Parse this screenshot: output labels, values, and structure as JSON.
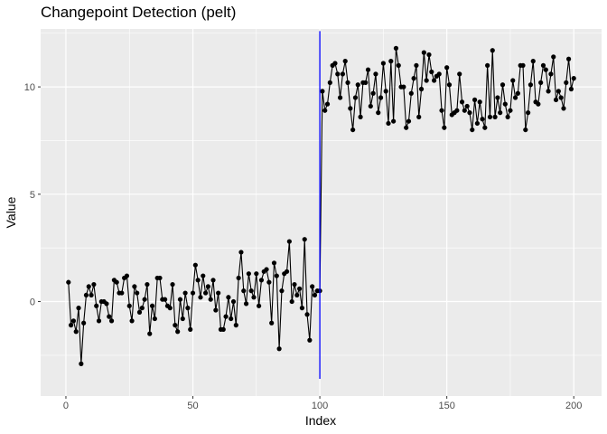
{
  "chart_data": {
    "type": "line",
    "title": "Changepoint Detection (pelt)",
    "xlabel": "Index",
    "ylabel": "Value",
    "xlim": [
      -9.95,
      210.95
    ],
    "ylim": [
      -4.4,
      12.7
    ],
    "xticks": [
      0,
      50,
      100,
      150,
      200
    ],
    "yticks": [
      0,
      5,
      10
    ],
    "grid": true,
    "background": "#ebebeb",
    "grid_color": "#ffffff",
    "line_color": "#000000",
    "point_color": "#000000",
    "changepoint_color": "#0000ff",
    "changepoints": [
      100
    ],
    "x": [
      1,
      2,
      3,
      4,
      5,
      6,
      7,
      8,
      9,
      10,
      11,
      12,
      13,
      14,
      15,
      16,
      17,
      18,
      19,
      20,
      21,
      22,
      23,
      24,
      25,
      26,
      27,
      28,
      29,
      30,
      31,
      32,
      33,
      34,
      35,
      36,
      37,
      38,
      39,
      40,
      41,
      42,
      43,
      44,
      45,
      46,
      47,
      48,
      49,
      50,
      51,
      52,
      53,
      54,
      55,
      56,
      57,
      58,
      59,
      60,
      61,
      62,
      63,
      64,
      65,
      66,
      67,
      68,
      69,
      70,
      71,
      72,
      73,
      74,
      75,
      76,
      77,
      78,
      79,
      80,
      81,
      82,
      83,
      84,
      85,
      86,
      87,
      88,
      89,
      90,
      91,
      92,
      93,
      94,
      95,
      96,
      97,
      98,
      99,
      100,
      101,
      102,
      103,
      104,
      105,
      106,
      107,
      108,
      109,
      110,
      111,
      112,
      113,
      114,
      115,
      116,
      117,
      118,
      119,
      120,
      121,
      122,
      123,
      124,
      125,
      126,
      127,
      128,
      129,
      130,
      131,
      132,
      133,
      134,
      135,
      136,
      137,
      138,
      139,
      140,
      141,
      142,
      143,
      144,
      145,
      146,
      147,
      148,
      149,
      150,
      151,
      152,
      153,
      154,
      155,
      156,
      157,
      158,
      159,
      160,
      161,
      162,
      163,
      164,
      165,
      166,
      167,
      168,
      169,
      170,
      171,
      172,
      173,
      174,
      175,
      176,
      177,
      178,
      179,
      180,
      181,
      182,
      183,
      184,
      185,
      186,
      187,
      188,
      189,
      190,
      191,
      192,
      193,
      194,
      195,
      196,
      197,
      198,
      199,
      200
    ],
    "values": [
      0.9,
      -1.1,
      -0.9,
      -1.4,
      -0.3,
      -2.9,
      -1.0,
      0.3,
      0.7,
      0.3,
      0.8,
      -0.2,
      -0.9,
      0.0,
      0.0,
      -0.1,
      -0.7,
      -0.9,
      1.0,
      0.9,
      0.4,
      0.4,
      1.1,
      1.2,
      -0.2,
      -0.9,
      0.7,
      0.4,
      -0.5,
      -0.3,
      0.1,
      0.8,
      -1.5,
      -0.2,
      -0.8,
      1.1,
      1.1,
      0.1,
      0.1,
      -0.2,
      -0.3,
      0.8,
      -1.1,
      -1.4,
      0.1,
      -0.8,
      0.4,
      -0.3,
      -1.3,
      0.4,
      1.7,
      1.0,
      0.2,
      1.2,
      0.4,
      0.7,
      0.1,
      1.0,
      -0.4,
      0.4,
      -1.3,
      -1.3,
      -0.7,
      0.2,
      -0.8,
      0.0,
      -1.1,
      1.1,
      2.3,
      0.5,
      -0.1,
      1.3,
      0.5,
      0.2,
      1.3,
      -0.2,
      1.0,
      1.4,
      1.5,
      0.9,
      -1.0,
      1.8,
      1.2,
      -2.2,
      0.5,
      1.3,
      1.4,
      2.8,
      0.0,
      0.8,
      0.3,
      0.6,
      -0.3,
      2.9,
      -0.6,
      -1.8,
      0.7,
      0.3,
      0.5,
      0.5,
      9.8,
      8.9,
      9.2,
      10.2,
      11.0,
      11.1,
      10.6,
      9.5,
      10.6,
      11.2,
      10.2,
      9.0,
      8.0,
      9.5,
      10.1,
      8.6,
      10.2,
      10.2,
      10.8,
      9.1,
      9.7,
      10.6,
      8.8,
      9.5,
      11.1,
      9.8,
      8.3,
      11.2,
      8.4,
      11.8,
      11.0,
      10.0,
      10.0,
      8.1,
      8.4,
      9.7,
      10.4,
      11.0,
      8.6,
      9.9,
      11.6,
      10.3,
      11.5,
      10.7,
      10.3,
      10.5,
      10.6,
      8.9,
      8.1,
      10.9,
      10.1,
      8.7,
      8.8,
      8.9,
      10.6,
      9.3,
      8.9,
      9.1,
      8.8,
      8.0,
      9.4,
      8.3,
      9.3,
      8.5,
      8.1,
      11.0,
      8.6,
      11.7,
      8.6,
      9.5,
      8.8,
      10.1,
      9.2,
      8.6,
      8.9,
      10.3,
      9.5,
      9.7,
      11.0,
      11.0,
      8.0,
      8.8,
      10.1,
      11.2,
      9.3,
      9.2,
      10.2,
      11.0,
      10.8,
      9.8,
      10.6,
      11.4,
      9.4,
      9.8,
      9.5,
      9.0,
      10.2,
      11.3,
      9.9,
      10.4
    ]
  }
}
